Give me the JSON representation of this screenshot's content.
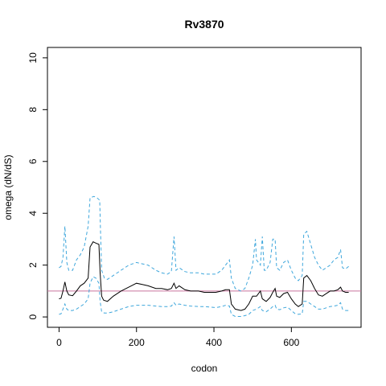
{
  "chart_data": {
    "type": "line",
    "title": "Rv3870",
    "xlabel": "codon",
    "ylabel": "omega (dN/dS)",
    "xlim": [
      -30,
      780
    ],
    "ylim": [
      -0.4,
      10.4
    ],
    "x_ticks": [
      0,
      200,
      400,
      600
    ],
    "y_ticks": [
      0,
      2,
      4,
      6,
      8,
      10
    ],
    "reference_line": {
      "y": 1,
      "color": "#c9739d"
    },
    "colors": {
      "estimate": "#000000",
      "bounds": "#3fa7dc"
    },
    "series": [
      {
        "role": "estimate",
        "style": "solid",
        "points": [
          [
            0,
            0.7
          ],
          [
            5,
            0.72
          ],
          [
            10,
            1.0
          ],
          [
            15,
            1.35
          ],
          [
            20,
            1.0
          ],
          [
            25,
            0.85
          ],
          [
            35,
            0.82
          ],
          [
            45,
            1.0
          ],
          [
            55,
            1.2
          ],
          [
            65,
            1.3
          ],
          [
            75,
            1.5
          ],
          [
            80,
            2.7
          ],
          [
            88,
            2.9
          ],
          [
            95,
            2.85
          ],
          [
            103,
            2.8
          ],
          [
            106,
            1.7
          ],
          [
            110,
            0.8
          ],
          [
            115,
            0.65
          ],
          [
            125,
            0.6
          ],
          [
            140,
            0.8
          ],
          [
            160,
            1.0
          ],
          [
            180,
            1.15
          ],
          [
            200,
            1.3
          ],
          [
            215,
            1.25
          ],
          [
            230,
            1.2
          ],
          [
            250,
            1.1
          ],
          [
            265,
            1.1
          ],
          [
            280,
            1.05
          ],
          [
            290,
            1.1
          ],
          [
            297,
            1.3
          ],
          [
            302,
            1.1
          ],
          [
            310,
            1.2
          ],
          [
            325,
            1.05
          ],
          [
            340,
            1.0
          ],
          [
            360,
            1.0
          ],
          [
            375,
            0.95
          ],
          [
            390,
            0.95
          ],
          [
            405,
            0.95
          ],
          [
            420,
            1.0
          ],
          [
            430,
            1.05
          ],
          [
            440,
            1.05
          ],
          [
            445,
            0.5
          ],
          [
            455,
            0.3
          ],
          [
            470,
            0.25
          ],
          [
            480,
            0.3
          ],
          [
            490,
            0.5
          ],
          [
            500,
            0.8
          ],
          [
            510,
            0.8
          ],
          [
            520,
            1.0
          ],
          [
            525,
            0.7
          ],
          [
            535,
            0.6
          ],
          [
            545,
            0.75
          ],
          [
            552,
            0.95
          ],
          [
            558,
            1.1
          ],
          [
            562,
            0.8
          ],
          [
            570,
            0.75
          ],
          [
            580,
            0.9
          ],
          [
            590,
            0.95
          ],
          [
            600,
            0.7
          ],
          [
            610,
            0.5
          ],
          [
            618,
            0.4
          ],
          [
            628,
            0.5
          ],
          [
            632,
            1.5
          ],
          [
            640,
            1.6
          ],
          [
            650,
            1.4
          ],
          [
            660,
            1.1
          ],
          [
            670,
            0.85
          ],
          [
            680,
            0.8
          ],
          [
            690,
            0.9
          ],
          [
            700,
            1.0
          ],
          [
            710,
            1.0
          ],
          [
            720,
            1.05
          ],
          [
            727,
            1.15
          ],
          [
            732,
            1.0
          ],
          [
            740,
            0.95
          ],
          [
            748,
            0.95
          ]
        ]
      },
      {
        "role": "upper bound",
        "style": "dashed",
        "points": [
          [
            0,
            1.9
          ],
          [
            5,
            1.95
          ],
          [
            10,
            2.3
          ],
          [
            15,
            3.5
          ],
          [
            20,
            2.1
          ],
          [
            25,
            1.8
          ],
          [
            35,
            1.8
          ],
          [
            45,
            2.2
          ],
          [
            55,
            2.4
          ],
          [
            65,
            2.7
          ],
          [
            75,
            3.5
          ],
          [
            80,
            4.6
          ],
          [
            90,
            4.65
          ],
          [
            98,
            4.6
          ],
          [
            105,
            4.5
          ],
          [
            107,
            3.3
          ],
          [
            110,
            1.8
          ],
          [
            117,
            1.5
          ],
          [
            125,
            1.45
          ],
          [
            140,
            1.6
          ],
          [
            160,
            1.8
          ],
          [
            180,
            2.0
          ],
          [
            200,
            2.1
          ],
          [
            215,
            2.05
          ],
          [
            230,
            2.0
          ],
          [
            250,
            1.8
          ],
          [
            265,
            1.7
          ],
          [
            280,
            1.65
          ],
          [
            290,
            1.75
          ],
          [
            297,
            3.1
          ],
          [
            302,
            1.8
          ],
          [
            310,
            1.9
          ],
          [
            325,
            1.75
          ],
          [
            340,
            1.7
          ],
          [
            360,
            1.7
          ],
          [
            375,
            1.65
          ],
          [
            390,
            1.65
          ],
          [
            405,
            1.65
          ],
          [
            420,
            1.8
          ],
          [
            430,
            2.0
          ],
          [
            440,
            2.2
          ],
          [
            445,
            1.5
          ],
          [
            455,
            1.1
          ],
          [
            470,
            1.0
          ],
          [
            480,
            1.1
          ],
          [
            490,
            1.5
          ],
          [
            500,
            2.0
          ],
          [
            507,
            3.0
          ],
          [
            510,
            2.2
          ],
          [
            520,
            2.0
          ],
          [
            525,
            3.1
          ],
          [
            530,
            1.8
          ],
          [
            535,
            1.8
          ],
          [
            545,
            2.1
          ],
          [
            552,
            3.0
          ],
          [
            558,
            3.0
          ],
          [
            562,
            1.9
          ],
          [
            570,
            1.8
          ],
          [
            580,
            2.1
          ],
          [
            590,
            2.2
          ],
          [
            595,
            2.0
          ],
          [
            600,
            1.8
          ],
          [
            610,
            1.5
          ],
          [
            618,
            1.4
          ],
          [
            628,
            1.6
          ],
          [
            632,
            3.2
          ],
          [
            640,
            3.3
          ],
          [
            650,
            2.8
          ],
          [
            660,
            2.3
          ],
          [
            670,
            2.0
          ],
          [
            680,
            1.8
          ],
          [
            690,
            1.9
          ],
          [
            700,
            2.0
          ],
          [
            710,
            2.2
          ],
          [
            720,
            2.3
          ],
          [
            727,
            2.6
          ],
          [
            732,
            1.9
          ],
          [
            740,
            1.85
          ],
          [
            748,
            1.95
          ]
        ]
      },
      {
        "role": "lower bound",
        "style": "dashed",
        "points": [
          [
            0,
            0.1
          ],
          [
            5,
            0.12
          ],
          [
            10,
            0.3
          ],
          [
            15,
            0.5
          ],
          [
            20,
            0.3
          ],
          [
            25,
            0.25
          ],
          [
            35,
            0.25
          ],
          [
            45,
            0.3
          ],
          [
            55,
            0.4
          ],
          [
            65,
            0.5
          ],
          [
            75,
            0.7
          ],
          [
            80,
            1.3
          ],
          [
            88,
            1.55
          ],
          [
            95,
            1.5
          ],
          [
            103,
            1.3
          ],
          [
            106,
            0.6
          ],
          [
            110,
            0.2
          ],
          [
            117,
            0.15
          ],
          [
            125,
            0.15
          ],
          [
            140,
            0.2
          ],
          [
            160,
            0.3
          ],
          [
            180,
            0.4
          ],
          [
            200,
            0.45
          ],
          [
            215,
            0.45
          ],
          [
            230,
            0.45
          ],
          [
            250,
            0.42
          ],
          [
            265,
            0.4
          ],
          [
            280,
            0.4
          ],
          [
            290,
            0.42
          ],
          [
            297,
            0.55
          ],
          [
            302,
            0.45
          ],
          [
            310,
            0.5
          ],
          [
            325,
            0.45
          ],
          [
            340,
            0.42
          ],
          [
            360,
            0.4
          ],
          [
            375,
            0.4
          ],
          [
            390,
            0.38
          ],
          [
            405,
            0.36
          ],
          [
            420,
            0.4
          ],
          [
            430,
            0.45
          ],
          [
            440,
            0.42
          ],
          [
            445,
            0.1
          ],
          [
            455,
            0.02
          ],
          [
            470,
            0.02
          ],
          [
            480,
            0.05
          ],
          [
            490,
            0.1
          ],
          [
            500,
            0.25
          ],
          [
            510,
            0.3
          ],
          [
            520,
            0.4
          ],
          [
            525,
            0.25
          ],
          [
            535,
            0.2
          ],
          [
            545,
            0.3
          ],
          [
            552,
            0.4
          ],
          [
            558,
            0.45
          ],
          [
            562,
            0.3
          ],
          [
            570,
            0.28
          ],
          [
            580,
            0.35
          ],
          [
            590,
            0.38
          ],
          [
            600,
            0.25
          ],
          [
            610,
            0.12
          ],
          [
            618,
            0.1
          ],
          [
            628,
            0.12
          ],
          [
            632,
            0.6
          ],
          [
            640,
            0.6
          ],
          [
            650,
            0.5
          ],
          [
            660,
            0.4
          ],
          [
            670,
            0.3
          ],
          [
            680,
            0.3
          ],
          [
            690,
            0.35
          ],
          [
            700,
            0.4
          ],
          [
            710,
            0.42
          ],
          [
            720,
            0.45
          ],
          [
            727,
            0.55
          ],
          [
            732,
            0.3
          ],
          [
            740,
            0.25
          ],
          [
            748,
            0.25
          ]
        ]
      }
    ]
  }
}
